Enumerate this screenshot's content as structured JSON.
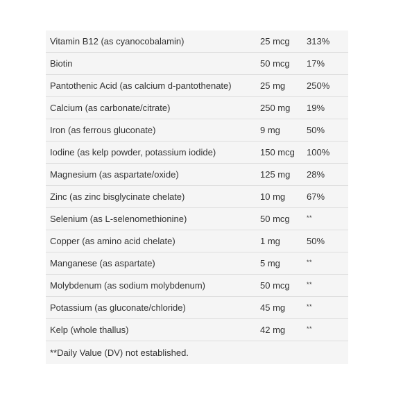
{
  "rows": [
    {
      "name": "Vitamin B12 (as cyanocobalamin)",
      "amount": "25 mcg",
      "dv": "313%"
    },
    {
      "name": "Biotin",
      "amount": "50 mcg",
      "dv": "17%"
    },
    {
      "name": "Pantothenic Acid (as calcium d-pantothenate)",
      "amount": "25 mg",
      "dv": "250%"
    },
    {
      "name": "Calcium (as carbonate/citrate)",
      "amount": "250 mg",
      "dv": "19%"
    },
    {
      "name": "Iron (as ferrous gluconate)",
      "amount": "9 mg",
      "dv": "50%"
    },
    {
      "name": "Iodine (as kelp powder, potassium iodide)",
      "amount": "150 mcg",
      "dv": "100%"
    },
    {
      "name": "Magnesium (as aspartate/oxide)",
      "amount": "125 mg",
      "dv": "28%"
    },
    {
      "name": "Zinc (as zinc bisglycinate chelate)",
      "amount": "10 mg",
      "dv": "67%"
    },
    {
      "name": "Selenium (as L-selenomethionine)",
      "amount": "50 mcg",
      "dv": "**"
    },
    {
      "name": "Copper (as amino acid chelate)",
      "amount": "1 mg",
      "dv": "50%"
    },
    {
      "name": "Manganese (as aspartate)",
      "amount": "5 mg",
      "dv": "**"
    },
    {
      "name": "Molybdenum (as sodium molybdenum)",
      "amount": "50 mcg",
      "dv": "**"
    },
    {
      "name": "Potassium (as gluconate/chloride)",
      "amount": "45 mg",
      "dv": "**"
    },
    {
      "name": "Kelp (whole thallus)",
      "amount": "42 mg",
      "dv": "**"
    }
  ],
  "footnote": "**Daily Value (DV) not established."
}
